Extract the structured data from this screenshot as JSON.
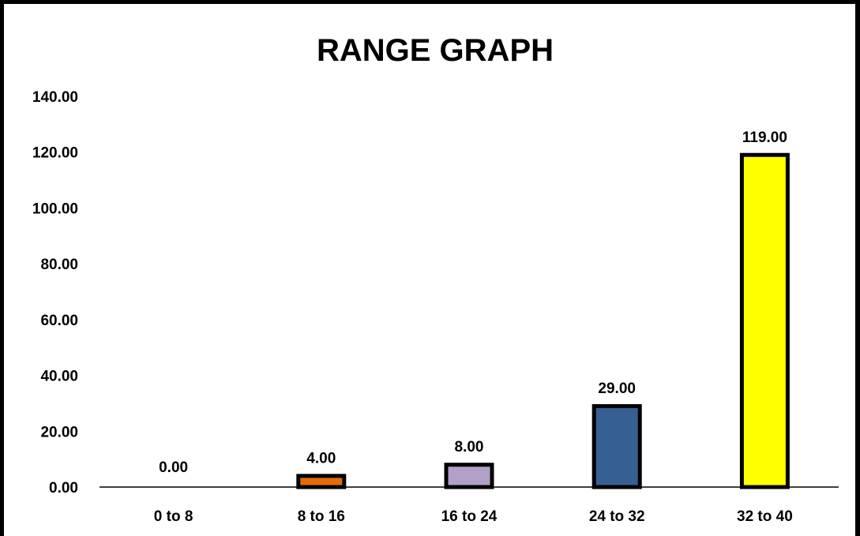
{
  "chart_data": {
    "type": "bar",
    "title": "RANGE GRAPH",
    "xlabel": "",
    "ylabel": "",
    "categories": [
      "0 to 8",
      "8 to 16",
      "16 to 24",
      "24 to 32",
      "32 to 40"
    ],
    "values": [
      0,
      4,
      8,
      29,
      119
    ],
    "data_labels": [
      "0.00",
      "4.00",
      "8.00",
      "29.00",
      "119.00"
    ],
    "bar_colors": [
      "#ffffff",
      "#e26b0a",
      "#b1a0c7",
      "#366092",
      "#ffff00"
    ],
    "bar_outline_color": "#000000",
    "ylim": [
      0,
      140
    ],
    "y_ticks": [
      0,
      20,
      40,
      60,
      80,
      100,
      120,
      140
    ],
    "y_tick_labels": [
      "0.00",
      "20.00",
      "40.00",
      "60.00",
      "80.00",
      "100.00",
      "120.00",
      "140.00"
    ],
    "grid": false,
    "legend": "none"
  }
}
